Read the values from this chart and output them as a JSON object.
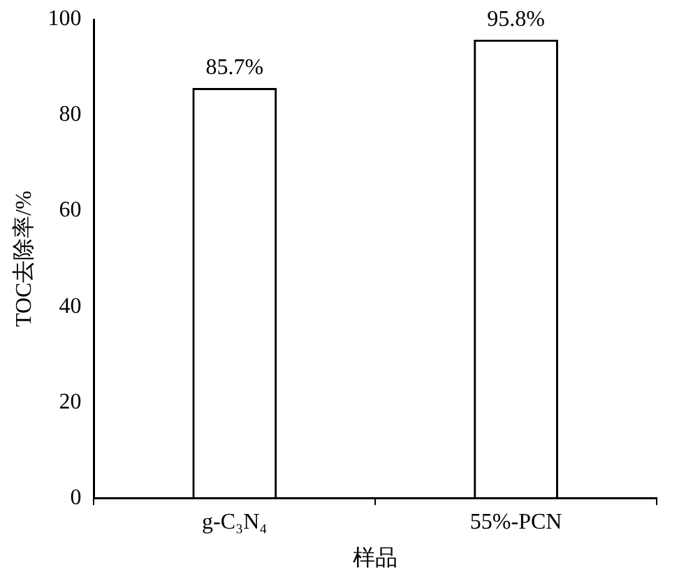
{
  "chart_data": {
    "type": "bar",
    "xlabel": "样品",
    "ylabel": "TOC去除率/%",
    "categories": [
      "g-C₃N₄",
      "55%-PCN"
    ],
    "values": [
      85.7,
      95.8
    ],
    "value_labels": [
      "85.7%",
      "95.8%"
    ],
    "color": "#000000",
    "ylim": [
      0,
      100
    ],
    "yticks": [
      0,
      20,
      40,
      60,
      80,
      100
    ],
    "grid": false
  }
}
